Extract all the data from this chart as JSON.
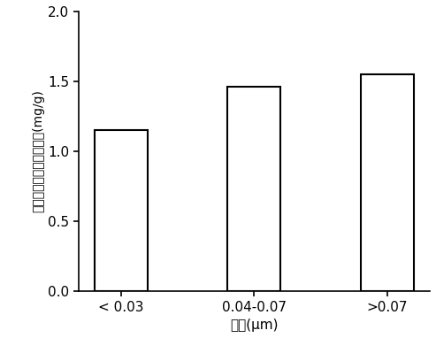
{
  "categories": [
    "< 0.03",
    "0.04-0.07",
    ">0.07"
  ],
  "values": [
    1.15,
    1.46,
    1.55
  ],
  "bar_color": "#ffffff",
  "bar_edgecolor": "#000000",
  "bar_width": 0.4,
  "xlabel": "粒径(μm)",
  "ylabel": "单位粒相物丁香酱释放量(mg/g)",
  "ylim": [
    0.0,
    2.0
  ],
  "yticks": [
    0.0,
    0.5,
    1.0,
    1.5,
    2.0
  ],
  "background_color": "#ffffff",
  "xlabel_fontsize": 11,
  "ylabel_fontsize": 10,
  "tick_fontsize": 11
}
